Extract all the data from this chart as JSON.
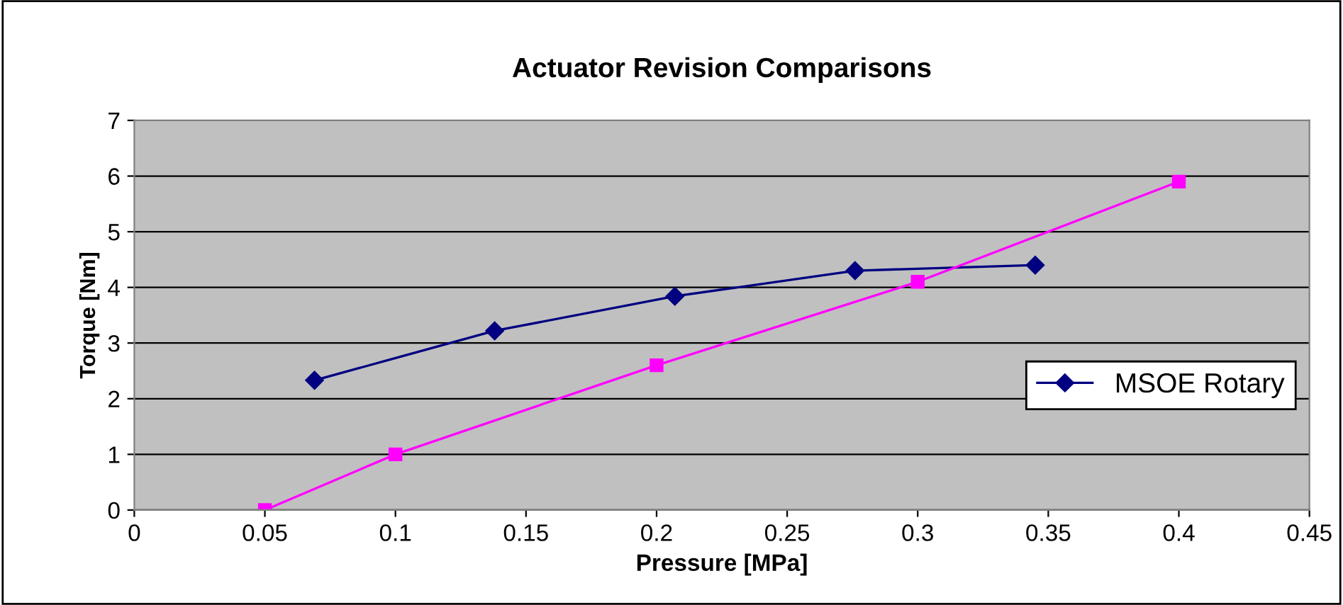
{
  "chart_data": {
    "type": "line",
    "title": "Actuator Revision Comparisons",
    "xlabel": "Pressure [MPa]",
    "ylabel": "Torque [Nm]",
    "series": [
      {
        "name": "MSOE Rotary",
        "color": "#000080",
        "marker": "diamond",
        "x": [
          0.069,
          0.138,
          0.207,
          0.276,
          0.345
        ],
        "values": [
          2.33,
          3.22,
          3.84,
          4.3,
          4.4
        ]
      },
      {
        "color": "#ff00ff",
        "marker": "square",
        "x": [
          0.05,
          0.1,
          0.2,
          0.3,
          0.4
        ],
        "values": [
          0,
          1,
          2.6,
          4.1,
          5.9
        ]
      }
    ],
    "xlim": [
      0,
      0.45
    ],
    "xticks": [
      0,
      0.05,
      0.1,
      0.15,
      0.2,
      0.25,
      0.3,
      0.35,
      0.4,
      0.45
    ],
    "ylim": [
      0,
      7
    ],
    "yticks": [
      0,
      1,
      2,
      3,
      4,
      5,
      6,
      7
    ],
    "grid": "y",
    "legend": "right"
  }
}
